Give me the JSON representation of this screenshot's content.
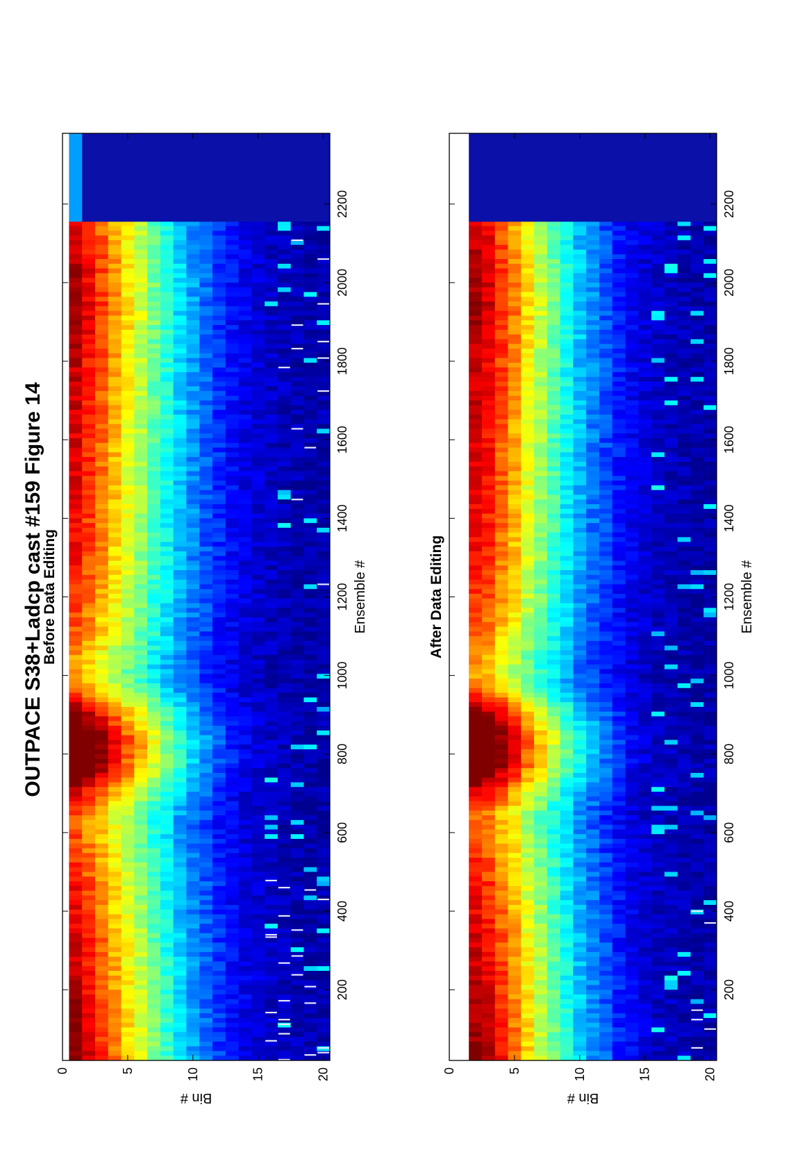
{
  "figure": {
    "title": "OUTPACE S38+Ladcp cast #159  Figure 14"
  },
  "colormap": [
    "#00008f",
    "#0000ff",
    "#0080ff",
    "#00ffff",
    "#80ff80",
    "#ffff00",
    "#ff8000",
    "#ff0000",
    "#800000"
  ],
  "chart_data": [
    {
      "type": "heatmap",
      "title": "Before Data Editing",
      "xlabel": "Ensemble #",
      "ylabel": "Bin #",
      "xlim": [
        20,
        2380
      ],
      "ylim": [
        0,
        20.5
      ],
      "xticks": [
        200,
        400,
        600,
        800,
        1000,
        1200,
        1400,
        1600,
        1800,
        2000,
        2200
      ],
      "yticks": [
        0,
        5,
        10,
        15,
        20
      ],
      "x_extent": [
        20,
        2155
      ],
      "bins": 20,
      "profile_by_bin": [
        0.92,
        0.85,
        0.78,
        0.7,
        0.62,
        0.55,
        0.47,
        0.4,
        0.33,
        0.27,
        0.22,
        0.17,
        0.13,
        0.1,
        0.08,
        0.06,
        0.05,
        0.04,
        0.03,
        0.03
      ],
      "ensemble_strength": [
        [
          20,
          0.95
        ],
        [
          150,
          0.9
        ],
        [
          300,
          0.82
        ],
        [
          450,
          0.72
        ],
        [
          550,
          0.6
        ],
        [
          640,
          0.42
        ],
        [
          700,
          0.55
        ],
        [
          760,
          0.85
        ],
        [
          830,
          0.97
        ],
        [
          900,
          0.8
        ],
        [
          960,
          0.45
        ],
        [
          1000,
          0.35
        ],
        [
          1100,
          0.55
        ],
        [
          1300,
          0.72
        ],
        [
          1600,
          0.8
        ],
        [
          1800,
          0.85
        ],
        [
          1900,
          0.92
        ],
        [
          2050,
          0.88
        ],
        [
          2155,
          0.78
        ]
      ],
      "plume_bump": {
        "center": 780,
        "width": 140,
        "strength": 0.22
      },
      "bin1_after_cutoff": {
        "x_range": [
          2155,
          2380
        ],
        "value": 0.28
      },
      "bad_value_flags": "white streaks in bins 16-20 near ensembles 20-480 and 1200-2155"
    },
    {
      "type": "heatmap",
      "title": "After Data Editing",
      "xlabel": "Ensemble #",
      "ylabel": "Bin #",
      "xlim": [
        20,
        2380
      ],
      "ylim": [
        0,
        20.5
      ],
      "xticks": [
        200,
        400,
        600,
        800,
        1000,
        1200,
        1400,
        1600,
        1800,
        2000,
        2200
      ],
      "yticks": [
        0,
        5,
        10,
        15,
        20
      ],
      "x_extent": [
        20,
        2155
      ],
      "bins": 20,
      "first_valid_bin": 2,
      "profile_by_bin": [
        0.92,
        0.92,
        0.88,
        0.8,
        0.72,
        0.62,
        0.54,
        0.46,
        0.38,
        0.31,
        0.25,
        0.2,
        0.15,
        0.11,
        0.08,
        0.06,
        0.05,
        0.04,
        0.03,
        0.03
      ],
      "ensemble_strength": [
        [
          20,
          0.95
        ],
        [
          150,
          0.9
        ],
        [
          300,
          0.82
        ],
        [
          450,
          0.72
        ],
        [
          550,
          0.6
        ],
        [
          640,
          0.42
        ],
        [
          700,
          0.55
        ],
        [
          760,
          0.85
        ],
        [
          830,
          0.97
        ],
        [
          900,
          0.8
        ],
        [
          960,
          0.45
        ],
        [
          1000,
          0.35
        ],
        [
          1100,
          0.55
        ],
        [
          1300,
          0.72
        ],
        [
          1600,
          0.8
        ],
        [
          1800,
          0.85
        ],
        [
          1900,
          0.92
        ],
        [
          2050,
          0.88
        ],
        [
          2155,
          0.78
        ]
      ],
      "plume_bump": {
        "center": 780,
        "width": 140,
        "strength": 0.22
      },
      "bad_value_flags": "few white streaks in bins 18-20 near ensembles 20-400"
    }
  ]
}
